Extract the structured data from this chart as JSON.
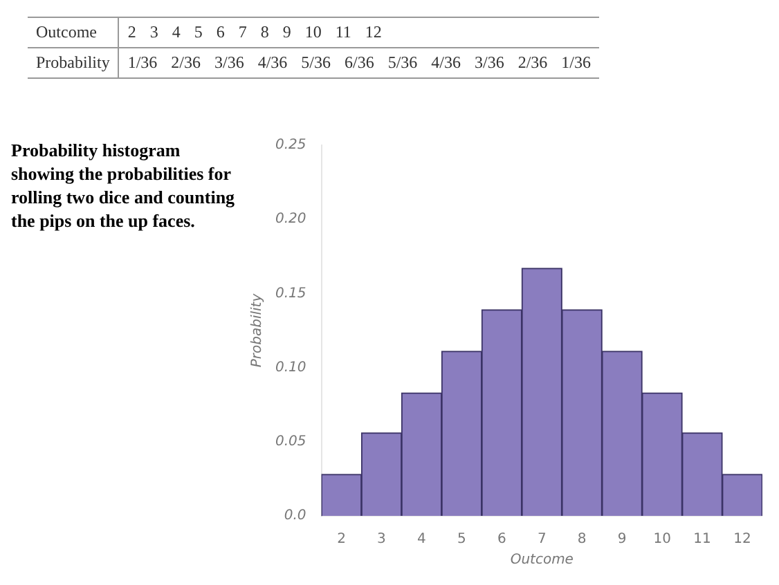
{
  "chart_data": [
    {
      "type": "other",
      "annotations": [
        "Outcome",
        "2 3 4 5 6 7 8 9 10 11 12",
        "Probability",
        "1/36 2/36 3/36 4/36 5/36 6/36 5/36 4/36 3/36 2/36 1/36"
      ]
    },
    {
      "type": "bar",
      "xlabel": "Outcome",
      "ylabel": "Probability",
      "categories": [
        "2",
        "3",
        "4",
        "5",
        "6",
        "7",
        "8",
        "9",
        "10",
        "11",
        "12"
      ],
      "values": [
        0.028,
        0.056,
        0.083,
        0.111,
        0.139,
        0.167,
        0.139,
        0.111,
        0.083,
        0.056,
        0.028
      ],
      "color": "#8a7dbf",
      "ylim": [
        0,
        0.25
      ],
      "yticks": [
        {
          "value": 0,
          "label": "0.0"
        },
        0.05,
        {
          "value": 0.1,
          "label": "0.10"
        },
        0.15,
        {
          "value": 0.2,
          "label": "0.20"
        },
        0.25
      ],
      "grid": false,
      "legend": false,
      "annotations": [
        "Probability histogram showing the probabilities for rolling two dice and counting the pips on the up faces."
      ]
    }
  ]
}
